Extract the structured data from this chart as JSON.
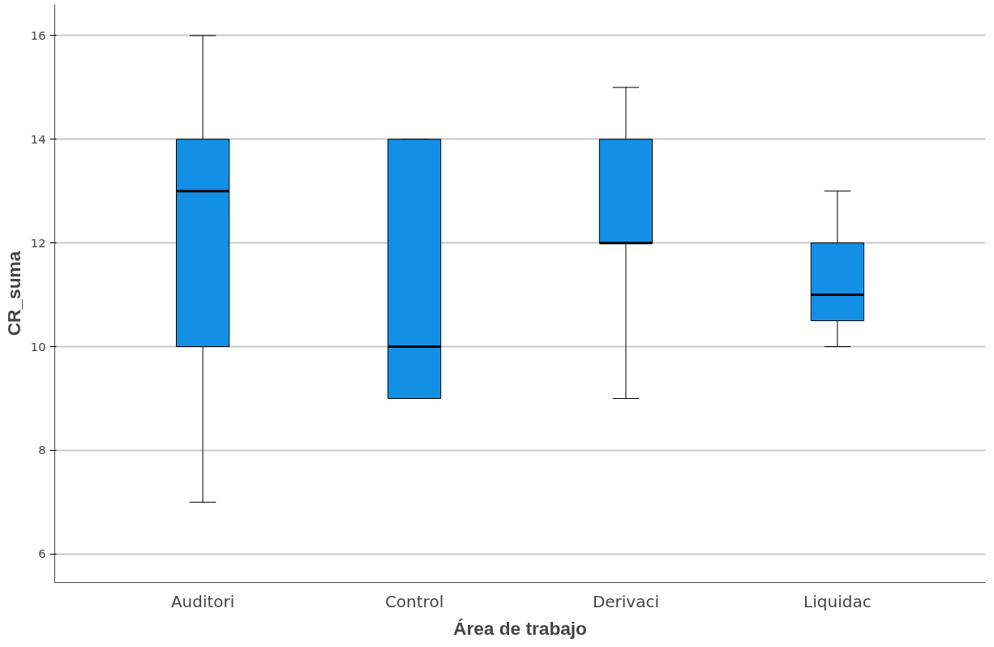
{
  "chart_data": {
    "type": "box",
    "xlabel": "Área de trabajo",
    "ylabel": "CR_suma",
    "categories": [
      "Auditori",
      "Control",
      "Derivaci",
      "Liquidac"
    ],
    "color": "#1390e6",
    "boxes": [
      {
        "low": 7,
        "q1": 10,
        "median": 13,
        "q3": 14,
        "high": 16
      },
      {
        "low": 9,
        "q1": 9,
        "median": 10,
        "q3": 14,
        "high": 14
      },
      {
        "low": 9,
        "q1": 12,
        "median": 12,
        "q3": 14,
        "high": 15
      },
      {
        "low": 10,
        "q1": 10.5,
        "median": 11,
        "q3": 12,
        "high": 13
      }
    ],
    "ylim": [
      5.45,
      16.6
    ],
    "yticks": [
      6,
      8,
      10,
      12,
      14,
      16
    ],
    "grid": "y"
  }
}
